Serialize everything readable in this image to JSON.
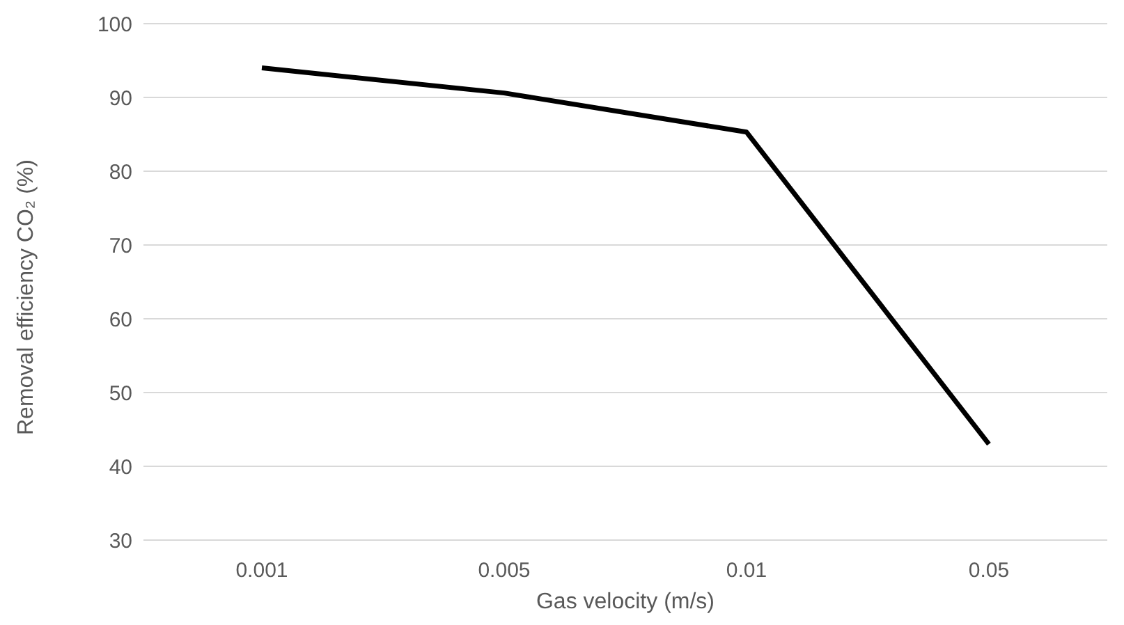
{
  "chart_data": {
    "type": "line",
    "xlabel": "Gas velocity (m/s)",
    "ylabel": "Removal efficiency CO₂ (%)",
    "categories": [
      "0.001",
      "0.005",
      "0.01",
      "0.05"
    ],
    "series": [
      {
        "color": "#000000",
        "values": [
          94,
          90.6,
          85.3,
          43
        ]
      }
    ],
    "ylim": [
      30,
      100
    ],
    "yticks": [
      30,
      40,
      50,
      60,
      70,
      80,
      90,
      100
    ],
    "grid": "y",
    "marker": "none",
    "line_style": "solid"
  }
}
